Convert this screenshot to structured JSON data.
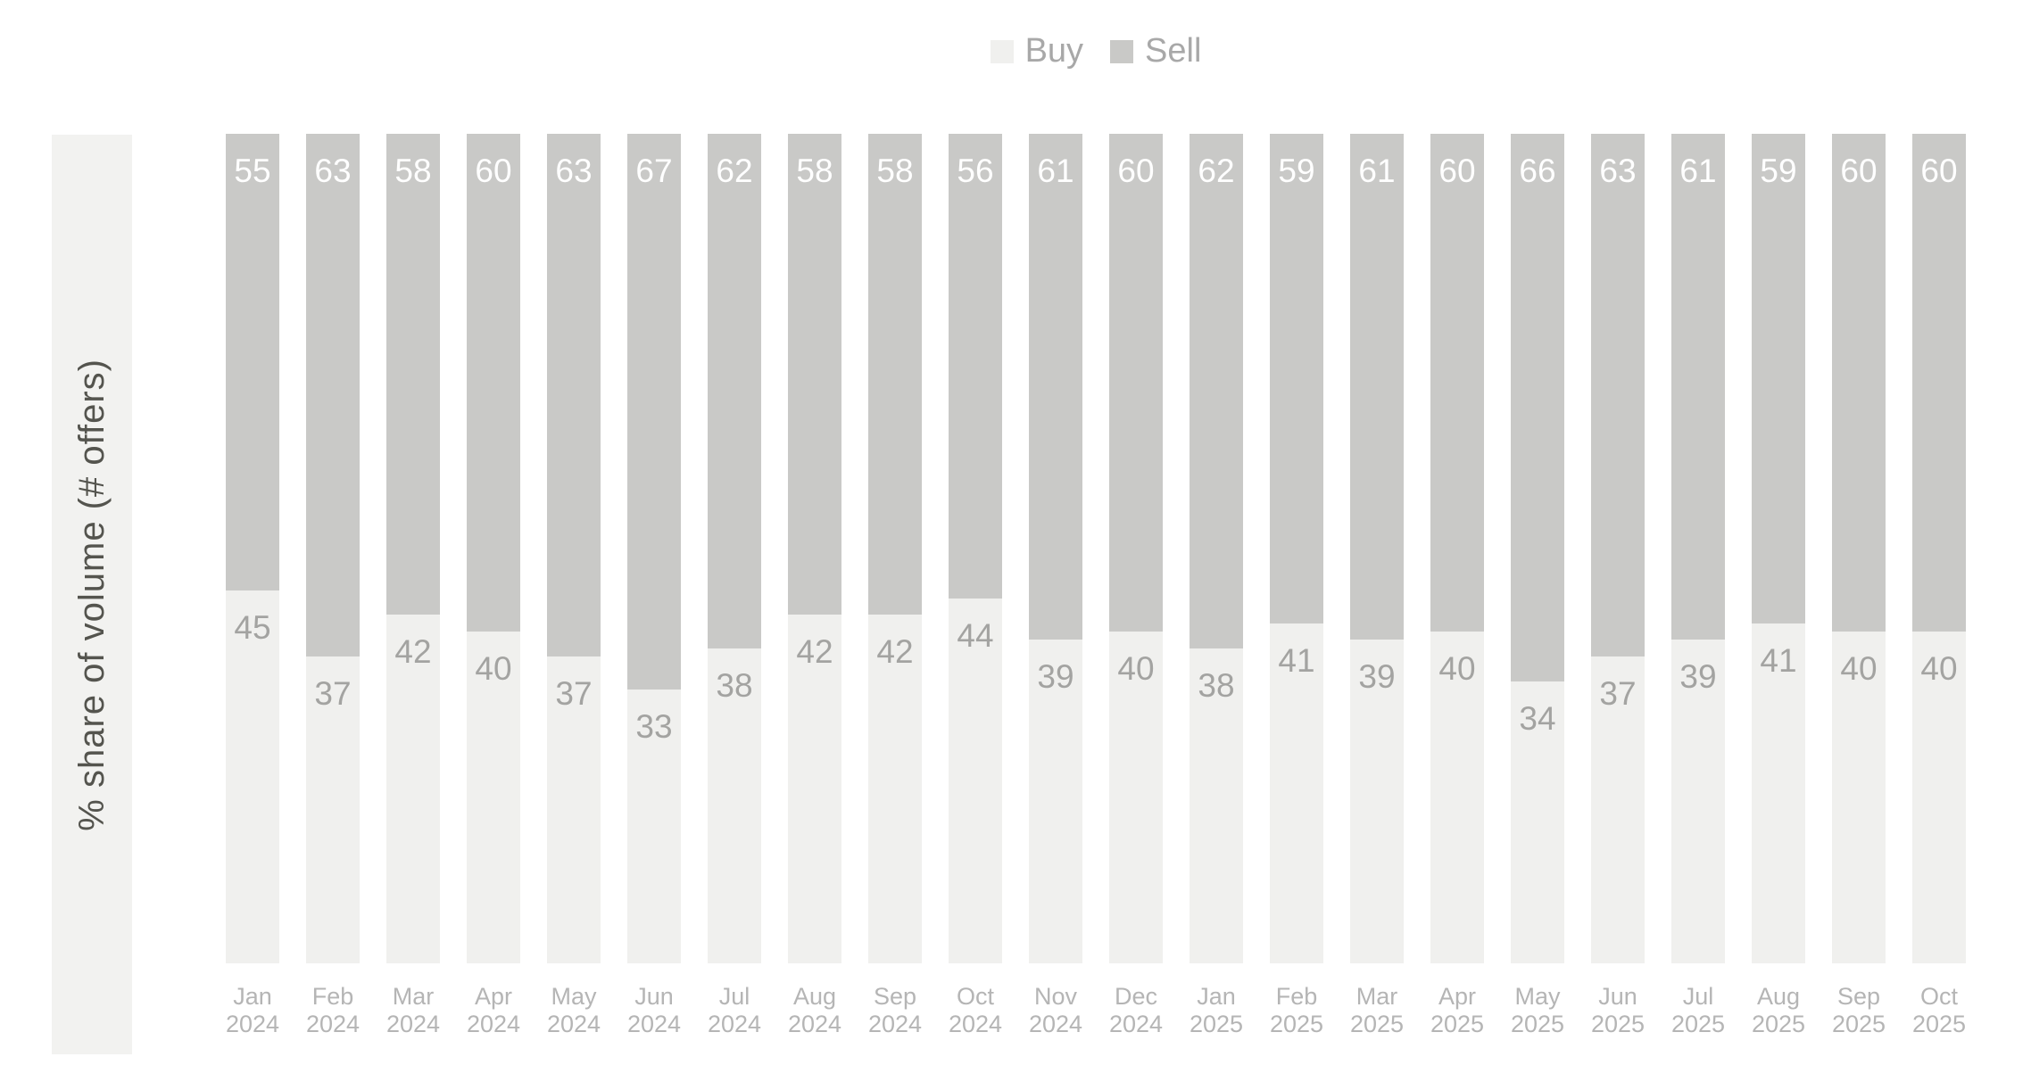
{
  "chart_data": {
    "type": "bar",
    "stacked": true,
    "stack_total": 100,
    "orientation": "vertical",
    "title": "",
    "xlabel": "",
    "ylabel": "% share of volume (# offers)",
    "ylim": [
      0,
      100
    ],
    "grid": false,
    "legend_position": "top-center",
    "categories": [
      "Jan 2024",
      "Feb 2024",
      "Mar 2024",
      "Apr 2024",
      "May 2024",
      "Jun 2024",
      "Jul 2024",
      "Aug 2024",
      "Sep 2024",
      "Oct 2024",
      "Nov 2024",
      "Dec 2024",
      "Jan 2025",
      "Feb 2025",
      "Mar 2025",
      "Apr 2025",
      "May 2025",
      "Jun 2025",
      "Jul 2025",
      "Aug 2025",
      "Sep 2025",
      "Oct 2025"
    ],
    "series": [
      {
        "name": "Buy",
        "color": "#f0f0ee",
        "label_color": "#a3a3a1",
        "values": [
          45,
          37,
          42,
          40,
          37,
          33,
          38,
          42,
          42,
          44,
          39,
          40,
          38,
          41,
          39,
          40,
          34,
          37,
          39,
          41,
          40,
          40
        ]
      },
      {
        "name": "Sell",
        "color": "#c9c9c7",
        "label_color": "#ffffff",
        "values": [
          55,
          63,
          58,
          60,
          63,
          67,
          62,
          58,
          58,
          56,
          61,
          60,
          62,
          59,
          61,
          60,
          66,
          63,
          61,
          59,
          60,
          60
        ]
      }
    ],
    "colors": {
      "axis_label_text": "#54544e",
      "axis_strip_background": "#f2f2f0",
      "category_label_text": "#b5b5b5",
      "legend_text": "#a8a8a8",
      "background": "#ffffff"
    }
  }
}
